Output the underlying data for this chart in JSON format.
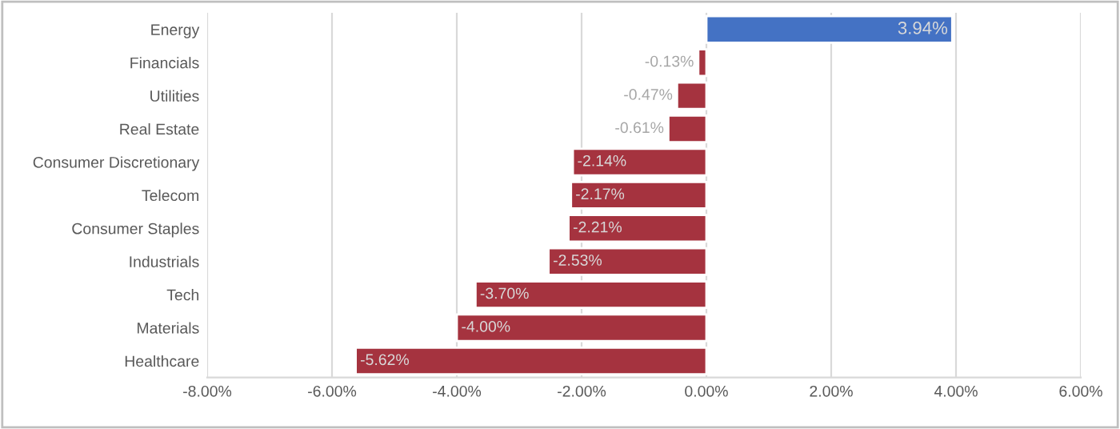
{
  "chart_data": {
    "type": "bar",
    "orientation": "horizontal",
    "categories": [
      "Energy",
      "Financials",
      "Utilities",
      "Real Estate",
      "Consumer Discretionary",
      "Telecom",
      "Consumer Staples",
      "Industrials",
      "Tech",
      "Materials",
      "Healthcare"
    ],
    "values": [
      3.94,
      -0.13,
      -0.47,
      -0.61,
      -2.14,
      -2.17,
      -2.21,
      -2.53,
      -3.7,
      -4.0,
      -5.62
    ],
    "colors": [
      "#4472c4",
      "#a5333f",
      "#a5333f",
      "#a5333f",
      "#a5333f",
      "#a5333f",
      "#a5333f",
      "#a5333f",
      "#a5333f",
      "#a5333f",
      "#a5333f"
    ],
    "value_labels": [
      "3.94%",
      "-0.13%",
      "-0.47%",
      "-0.61%",
      "-2.14%",
      "-2.17%",
      "-2.21%",
      "-2.53%",
      "-3.70%",
      "-4.00%",
      "-5.62%"
    ],
    "xlim": [
      -8,
      6
    ],
    "xticks": [
      {
        "value": -8,
        "label": "-8.00%"
      },
      {
        "value": -6,
        "label": "-6.00%"
      },
      {
        "value": -4,
        "label": "-4.00%"
      },
      {
        "value": -2,
        "label": "-2.00%"
      },
      {
        "value": 0,
        "label": "0.00%"
      },
      {
        "value": 2,
        "label": "2.00%"
      },
      {
        "value": 4,
        "label": "4.00%"
      },
      {
        "value": 6,
        "label": "6.00%"
      }
    ],
    "grid": "x",
    "legend": false
  }
}
